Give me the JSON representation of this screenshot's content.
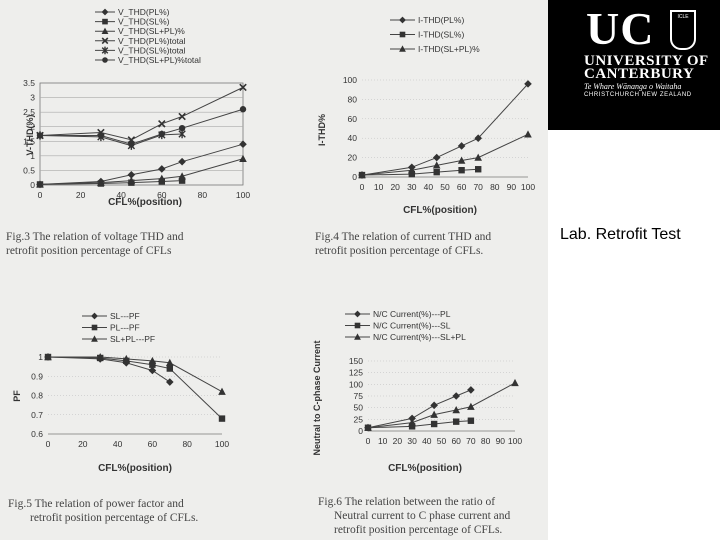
{
  "logo": {
    "line1": "UC",
    "crest": "ICLE",
    "line2": "UNIVERSITY OF",
    "line3": "CANTERBURY",
    "line4": "Te Whare Wānanga o Waitaha",
    "line5": "CHRISTCHURCH NEW ZEALAND"
  },
  "slide_label": "Lab. Retrofit Test",
  "captions": {
    "fig3_a": "Fig.3 The relation of  voltage THD and",
    "fig3_b": "retrofit  position percentage of CFLs",
    "fig4_a": "Fig.4 The relation of  current  THD and",
    "fig4_b": "retrofit position percentage of CFLs.",
    "fig5_a": "Fig.5    The relation of  power factor and",
    "fig5_b": "retrofit position percentage of CFLs.",
    "fig6_a": "Fig.6 The relation between the ratio of",
    "fig6_b": "Neutral current to C phase current  and",
    "fig6_c": "retrofit position percentage of CFLs."
  },
  "chart_data": [
    {
      "type": "line",
      "ylabel": "V-THD(%)",
      "xlabel": "CFL%(position)",
      "xlim": [
        0,
        100
      ],
      "ylim": [
        0,
        3.5
      ],
      "xticks": [
        "0",
        "20",
        "40",
        "60",
        "80",
        "100"
      ],
      "yticks": [
        "0",
        "0.5",
        "1",
        "1.5",
        "2",
        "2.5",
        "3",
        "3.5"
      ],
      "legend": "top",
      "series": [
        {
          "name": "V_THD(PL%)",
          "marker": "diamond",
          "x": [
            0,
            30,
            45,
            60,
            70,
            100
          ],
          "y": [
            0.02,
            0.12,
            0.35,
            0.55,
            0.8,
            1.4
          ]
        },
        {
          "name": "V_THD(SL%)",
          "marker": "square",
          "x": [
            0,
            30,
            45,
            60,
            70
          ],
          "y": [
            0.02,
            0.05,
            0.08,
            0.12,
            0.15
          ]
        },
        {
          "name": "V_THD(SL+PL)%",
          "marker": "triangle",
          "x": [
            0,
            30,
            45,
            60,
            70,
            100
          ],
          "y": [
            0.02,
            0.08,
            0.15,
            0.22,
            0.3,
            0.9
          ]
        },
        {
          "name": "V_THD(PL%)total",
          "marker": "x",
          "x": [
            0,
            30,
            45,
            60,
            70,
            100
          ],
          "y": [
            1.7,
            1.8,
            1.55,
            2.1,
            2.35,
            3.35
          ]
        },
        {
          "name": "V_THD(SL%)total",
          "marker": "star",
          "x": [
            0,
            30,
            45,
            60,
            70
          ],
          "y": [
            1.7,
            1.65,
            1.35,
            1.72,
            1.75
          ]
        },
        {
          "name": "V_THD(SL+PL)%total",
          "marker": "circle",
          "x": [
            0,
            30,
            45,
            60,
            70,
            100
          ],
          "y": [
            1.7,
            1.7,
            1.4,
            1.75,
            1.95,
            2.6
          ]
        }
      ]
    },
    {
      "type": "line",
      "ylabel": "I-THD%",
      "xlabel": "CFL%(position)",
      "xlim": [
        0,
        100
      ],
      "ylim": [
        0,
        100
      ],
      "xticks": [
        "0",
        "10",
        "20",
        "30",
        "40",
        "50",
        "60",
        "70",
        "80",
        "90",
        "100"
      ],
      "yticks": [
        "0",
        "20",
        "40",
        "60",
        "80",
        "100"
      ],
      "legend": "top",
      "series": [
        {
          "name": "I-THD(PL%)",
          "marker": "diamond",
          "x": [
            0,
            30,
            45,
            60,
            70,
            100
          ],
          "y": [
            2,
            10,
            20,
            32,
            40,
            96
          ]
        },
        {
          "name": "I-THD(SL%)",
          "marker": "square",
          "x": [
            0,
            30,
            45,
            60,
            70
          ],
          "y": [
            2,
            3,
            5,
            7,
            8
          ]
        },
        {
          "name": "I-THD(SL+PL)%",
          "marker": "triangle",
          "x": [
            0,
            30,
            45,
            60,
            70,
            100
          ],
          "y": [
            2,
            7,
            12,
            17,
            20,
            44
          ]
        }
      ]
    },
    {
      "type": "line",
      "ylabel": "PF",
      "xlabel": "CFL%(position)",
      "xlim": [
        0,
        100
      ],
      "ylim": [
        0.6,
        1.0
      ],
      "xticks": [
        "0",
        "20",
        "40",
        "60",
        "80",
        "100"
      ],
      "yticks": [
        "0.6",
        "0.7",
        "0.8",
        "0.9",
        "1"
      ],
      "legend": "top",
      "series": [
        {
          "name": "SL---PF",
          "marker": "diamond",
          "x": [
            0,
            30,
            45,
            60,
            70
          ],
          "y": [
            1.0,
            0.99,
            0.97,
            0.93,
            0.87
          ]
        },
        {
          "name": "PL---PF",
          "marker": "square",
          "x": [
            0,
            30,
            45,
            60,
            70,
            100
          ],
          "y": [
            1.0,
            0.995,
            0.98,
            0.96,
            0.94,
            0.68
          ]
        },
        {
          "name": "SL+PL---PF",
          "marker": "triangle",
          "x": [
            0,
            30,
            45,
            60,
            70,
            100
          ],
          "y": [
            1.0,
            1.0,
            0.99,
            0.98,
            0.97,
            0.82
          ]
        }
      ]
    },
    {
      "type": "line",
      "ylabel": "Neutral to C-phase Current",
      "xlabel": "CFL%(position)",
      "xlim": [
        0,
        100
      ],
      "ylim": [
        0,
        150
      ],
      "xticks": [
        "0",
        "10",
        "20",
        "30",
        "40",
        "50",
        "60",
        "70",
        "80",
        "90",
        "100"
      ],
      "yticks": [
        "0",
        "25",
        "50",
        "75",
        "100",
        "125",
        "150"
      ],
      "legend": "top",
      "series": [
        {
          "name": "N/C Current(%)---PL",
          "marker": "diamond",
          "x": [
            0,
            30,
            45,
            60,
            70
          ],
          "y": [
            7,
            27,
            55,
            75,
            88
          ]
        },
        {
          "name": "N/C Current(%)---SL",
          "marker": "square",
          "x": [
            0,
            30,
            45,
            60,
            70
          ],
          "y": [
            7,
            10,
            15,
            20,
            22
          ]
        },
        {
          "name": "N/C Current(%)---SL+PL",
          "marker": "triangle",
          "x": [
            0,
            30,
            45,
            60,
            70,
            100
          ],
          "y": [
            7,
            18,
            35,
            45,
            52,
            103
          ]
        }
      ]
    }
  ]
}
